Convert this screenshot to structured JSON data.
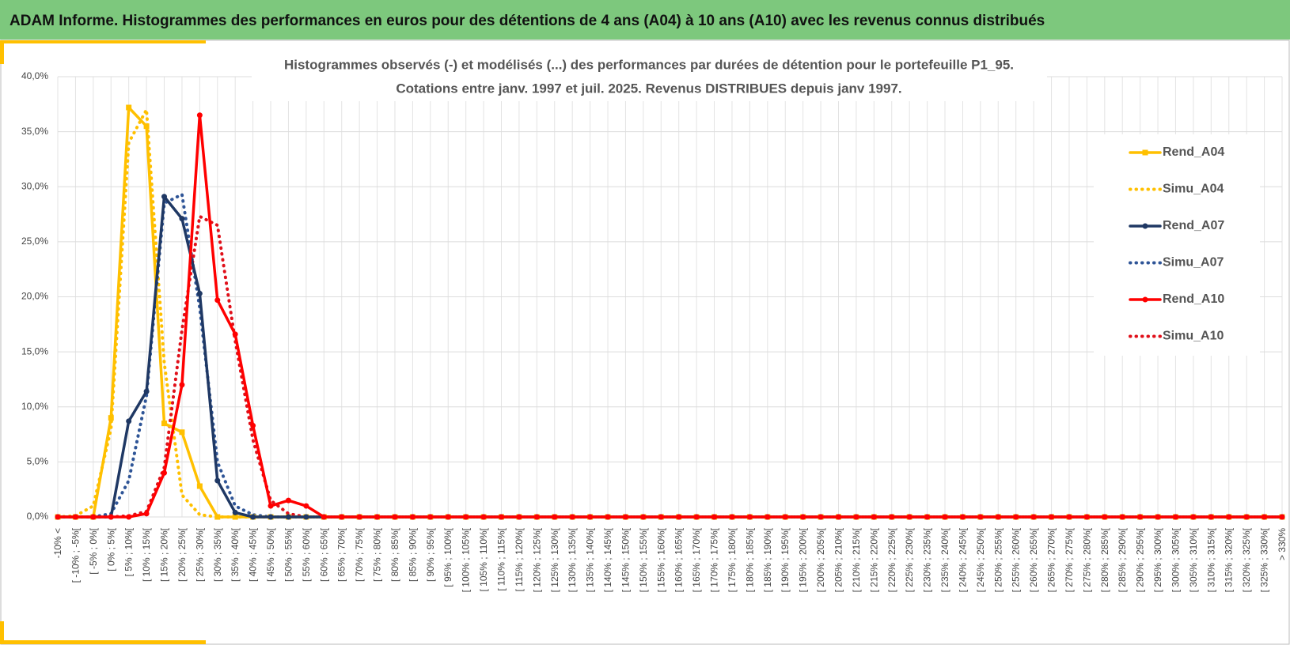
{
  "header": {
    "title": "ADAM Informe. Histogrammes des performances en euros pour des détentions de 4 ans (A04) à 10 ans (A10) avec les revenus connus distribués"
  },
  "chart_data": {
    "type": "line",
    "title": [
      "Histogrammes observés (-) et modélisés (...) des performances par durées de détention pour le portefeuille P1_95.",
      "Cotations entre janv. 1997 et juil. 2025. Revenus DISTRIBUES depuis janv 1997."
    ],
    "categories": [
      "-10% <",
      "[ -10% ; -5%[",
      "[ -5% ; 0%[",
      "[ 0% ; 5%[",
      "[ 5% ; 10%[",
      "[ 10% ; 15%[",
      "[ 15% ; 20%[",
      "[ 20% ; 25%[",
      "[ 25% ; 30%[",
      "[ 30% ; 35%[",
      "[ 35% ; 40%[",
      "[ 40% ; 45%[",
      "[ 45% ; 50%[",
      "[ 50% ; 55%[",
      "[ 55% ; 60%[",
      "[ 60% ; 65%[",
      "[ 65% ; 70%[",
      "[ 70% ; 75%[",
      "[ 75% ; 80%[",
      "[ 80% ; 85%[",
      "[ 85% ; 90%[",
      "[ 90% ; 95%[",
      "[ 95% ; 100%[",
      "[ 100% ; 105%[",
      "[ 105% ; 110%[",
      "[ 110% ; 115%[",
      "[ 115% ; 120%[",
      "[ 120% ; 125%[",
      "[ 125% ; 130%[",
      "[ 130% ; 135%[",
      "[ 135% ; 140%[",
      "[ 140% ; 145%[",
      "[ 145% ; 150%[",
      "[ 150% ; 155%[",
      "[ 155% ; 160%[",
      "[ 160% ; 165%[",
      "[ 165% ; 170%[",
      "[ 170% ; 175%[",
      "[ 175% ; 180%[",
      "[ 180% ; 185%[",
      "[ 185% ; 190%[",
      "[ 190% ; 195%[",
      "[ 195% ; 200%[",
      "[ 200% ; 205%[",
      "[ 205% ; 210%[",
      "[ 210% ; 215%[",
      "[ 215% ; 220%[",
      "[ 220% ; 225%[",
      "[ 225% ; 230%[",
      "[ 230% ; 235%[",
      "[ 235% ; 240%[",
      "[ 240% ; 245%[",
      "[ 245% ; 250%[",
      "[ 250% ; 255%[",
      "[ 255% ; 260%[",
      "[ 260% ; 265%[",
      "[ 265% ; 270%[",
      "[ 270% ; 275%[",
      "[ 275% ; 280%[",
      "[ 280% ; 285%[",
      "[ 285% ; 290%[",
      "[ 290% ; 295%[",
      "[ 295% ; 300%[",
      "[ 300% ; 305%[",
      "[ 305% ; 310%[",
      "[ 310% ; 315%[",
      "[ 315% ; 320%[",
      "[ 320% ; 325%[",
      "[ 325% ; 330%[",
      "> 330%"
    ],
    "series": [
      {
        "name": "Rend_A04",
        "color": "#ffc000",
        "style": "solid",
        "marker": "square",
        "values": [
          0,
          0,
          0,
          9,
          37.2,
          35.5,
          8.5,
          7.7,
          2.8,
          0,
          0,
          0,
          0,
          0,
          0,
          0,
          0,
          0,
          0,
          0,
          0,
          0,
          0,
          0,
          0,
          0,
          0,
          0,
          0,
          0,
          0,
          0,
          0,
          0,
          0,
          0,
          0,
          0,
          0,
          0,
          0,
          0,
          0,
          0,
          0,
          0,
          0,
          0,
          0,
          0,
          0,
          0,
          0,
          0,
          0,
          0,
          0,
          0,
          0,
          0,
          0,
          0,
          0,
          0,
          0,
          0,
          0,
          0,
          0,
          0
        ]
      },
      {
        "name": "Simu_A04",
        "color": "#ffc000",
        "style": "dotted",
        "values": [
          0,
          0.1,
          1,
          8,
          34,
          37,
          14,
          2,
          0.2,
          0,
          0,
          0,
          0,
          0,
          0,
          0,
          0,
          0,
          0,
          0,
          0,
          0,
          0,
          0,
          0,
          0,
          0,
          0,
          0,
          0,
          0,
          0,
          0,
          0,
          0,
          0,
          0,
          0,
          0,
          0,
          0,
          0,
          0,
          0,
          0,
          0,
          0,
          0,
          0,
          0,
          0,
          0,
          0,
          0,
          0,
          0,
          0,
          0,
          0,
          0,
          0,
          0,
          0,
          0,
          0,
          0,
          0,
          0,
          0,
          0
        ]
      },
      {
        "name": "Rend_A07",
        "color": "#1f3864",
        "style": "solid",
        "marker": "circle",
        "values": [
          0,
          0,
          0,
          0,
          8.7,
          11.4,
          29.1,
          27.1,
          20.3,
          3.3,
          0.4,
          0,
          0,
          0,
          0,
          0,
          0,
          0,
          0,
          0,
          0,
          0,
          0,
          0,
          0,
          0,
          0,
          0,
          0,
          0,
          0,
          0,
          0,
          0,
          0,
          0,
          0,
          0,
          0,
          0,
          0,
          0,
          0,
          0,
          0,
          0,
          0,
          0,
          0,
          0,
          0,
          0,
          0,
          0,
          0,
          0,
          0,
          0,
          0,
          0,
          0,
          0,
          0,
          0,
          0,
          0,
          0,
          0,
          0,
          0
        ]
      },
      {
        "name": "Simu_A07",
        "color": "#2f5597",
        "style": "dotted",
        "values": [
          0,
          0,
          0,
          0.3,
          3.3,
          11,
          28.5,
          29.3,
          19,
          5,
          1,
          0.2,
          0,
          0,
          0,
          0,
          0,
          0,
          0,
          0,
          0,
          0,
          0,
          0,
          0,
          0,
          0,
          0,
          0,
          0,
          0,
          0,
          0,
          0,
          0,
          0,
          0,
          0,
          0,
          0,
          0,
          0,
          0,
          0,
          0,
          0,
          0,
          0,
          0,
          0,
          0,
          0,
          0,
          0,
          0,
          0,
          0,
          0,
          0,
          0,
          0,
          0,
          0,
          0,
          0,
          0,
          0,
          0,
          0,
          0
        ]
      },
      {
        "name": "Rend_A10",
        "color": "#ff0000",
        "style": "solid",
        "marker": "circle",
        "values": [
          0,
          0,
          0,
          0,
          0,
          0.3,
          4,
          12,
          36.5,
          19.7,
          16.6,
          8.3,
          1,
          1.5,
          1,
          0,
          0,
          0,
          0,
          0,
          0,
          0,
          0,
          0,
          0,
          0,
          0,
          0,
          0,
          0,
          0,
          0,
          0,
          0,
          0,
          0,
          0,
          0,
          0,
          0,
          0,
          0,
          0,
          0,
          0,
          0,
          0,
          0,
          0,
          0,
          0,
          0,
          0,
          0,
          0,
          0,
          0,
          0,
          0,
          0,
          0,
          0,
          0,
          0,
          0,
          0,
          0,
          0,
          0,
          0
        ]
      },
      {
        "name": "Simu_A10",
        "color": "#e0101a",
        "style": "dotted",
        "values": [
          0,
          0,
          0,
          0,
          0.1,
          0.5,
          4.5,
          17,
          27.3,
          26.5,
          16,
          7,
          1.5,
          0.3,
          0,
          0,
          0,
          0,
          0,
          0,
          0,
          0,
          0,
          0,
          0,
          0,
          0,
          0,
          0,
          0,
          0,
          0,
          0,
          0,
          0,
          0,
          0,
          0,
          0,
          0,
          0,
          0,
          0,
          0,
          0,
          0,
          0,
          0,
          0,
          0,
          0,
          0,
          0,
          0,
          0,
          0,
          0,
          0,
          0,
          0,
          0,
          0,
          0,
          0,
          0,
          0,
          0,
          0,
          0,
          0
        ]
      }
    ],
    "ylim": [
      0,
      40
    ],
    "yticks": [
      {
        "value": 0,
        "label": "0,0%"
      },
      {
        "value": 5,
        "label": "5,0%"
      },
      {
        "value": 10,
        "label": "10,0%"
      },
      {
        "value": 15,
        "label": "15,0%"
      },
      {
        "value": 20,
        "label": "20,0%"
      },
      {
        "value": 25,
        "label": "25,0%"
      },
      {
        "value": 30,
        "label": "30,0%"
      },
      {
        "value": 35,
        "label": "35,0%"
      },
      {
        "value": 40,
        "label": "40,0%"
      }
    ],
    "grid": true,
    "legend": "right"
  }
}
